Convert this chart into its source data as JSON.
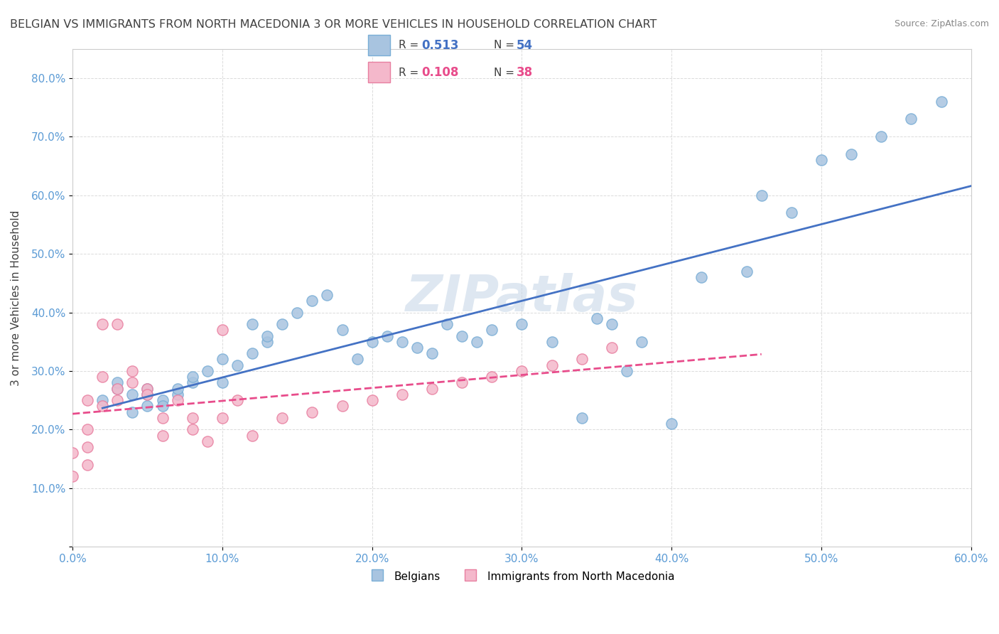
{
  "title": "BELGIAN VS IMMIGRANTS FROM NORTH MACEDONIA 3 OR MORE VEHICLES IN HOUSEHOLD CORRELATION CHART",
  "source": "Source: ZipAtlas.com",
  "ylabel": "3 or more Vehicles in Household",
  "xlabel": "",
  "xlim": [
    0.0,
    0.6
  ],
  "ylim": [
    0.0,
    0.85
  ],
  "xticks": [
    0.0,
    0.1,
    0.2,
    0.3,
    0.4,
    0.5,
    0.6
  ],
  "yticks": [
    0.0,
    0.1,
    0.2,
    0.3,
    0.4,
    0.5,
    0.6,
    0.7,
    0.8
  ],
  "ytick_labels": [
    "",
    "10.0%",
    "20.0%",
    "30.0%",
    "40.0%",
    "50.0%",
    "60.0%",
    "70.0%",
    "80.0%"
  ],
  "xtick_labels": [
    "0.0%",
    "10.0%",
    "20.0%",
    "30.0%",
    "40.0%",
    "50.0%",
    "60.0%"
  ],
  "legend_r1": "0.513",
  "legend_n1": "54",
  "legend_r2": "0.108",
  "legend_n2": "38",
  "belgian_color": "#a8c4e0",
  "belgian_edge": "#7aaed6",
  "macedonian_color": "#f4b8cb",
  "macedonian_edge": "#e87fa0",
  "trendline1_color": "#4472c4",
  "trendline2_color": "#e84c8b",
  "watermark_color": "#c8d8e8",
  "grid_color": "#cccccc",
  "title_color": "#404040",
  "axis_label_color": "#404040",
  "tick_color": "#5b9bd5",
  "belgians_x": [
    0.02,
    0.03,
    0.03,
    0.04,
    0.04,
    0.05,
    0.05,
    0.05,
    0.06,
    0.06,
    0.07,
    0.07,
    0.08,
    0.08,
    0.09,
    0.1,
    0.1,
    0.11,
    0.12,
    0.12,
    0.13,
    0.13,
    0.14,
    0.15,
    0.16,
    0.17,
    0.18,
    0.19,
    0.2,
    0.21,
    0.22,
    0.23,
    0.24,
    0.25,
    0.26,
    0.27,
    0.28,
    0.3,
    0.32,
    0.34,
    0.35,
    0.36,
    0.37,
    0.38,
    0.4,
    0.42,
    0.45,
    0.46,
    0.48,
    0.5,
    0.52,
    0.54,
    0.56,
    0.58
  ],
  "belgians_y": [
    0.25,
    0.27,
    0.28,
    0.23,
    0.26,
    0.24,
    0.26,
    0.27,
    0.25,
    0.24,
    0.26,
    0.27,
    0.28,
    0.29,
    0.3,
    0.28,
    0.32,
    0.31,
    0.33,
    0.38,
    0.35,
    0.36,
    0.38,
    0.4,
    0.42,
    0.43,
    0.37,
    0.32,
    0.35,
    0.36,
    0.35,
    0.34,
    0.33,
    0.38,
    0.36,
    0.35,
    0.37,
    0.38,
    0.35,
    0.22,
    0.39,
    0.38,
    0.3,
    0.35,
    0.21,
    0.46,
    0.47,
    0.6,
    0.57,
    0.66,
    0.67,
    0.7,
    0.73,
    0.76
  ],
  "macedonian_x": [
    0.0,
    0.0,
    0.01,
    0.01,
    0.01,
    0.01,
    0.02,
    0.02,
    0.02,
    0.03,
    0.03,
    0.03,
    0.04,
    0.04,
    0.05,
    0.05,
    0.06,
    0.06,
    0.07,
    0.08,
    0.08,
    0.09,
    0.1,
    0.1,
    0.11,
    0.12,
    0.14,
    0.16,
    0.18,
    0.2,
    0.22,
    0.24,
    0.26,
    0.28,
    0.3,
    0.32,
    0.34,
    0.36
  ],
  "macedonian_y": [
    0.16,
    0.12,
    0.14,
    0.17,
    0.2,
    0.25,
    0.24,
    0.29,
    0.38,
    0.38,
    0.27,
    0.25,
    0.3,
    0.28,
    0.27,
    0.26,
    0.22,
    0.19,
    0.25,
    0.22,
    0.2,
    0.18,
    0.37,
    0.22,
    0.25,
    0.19,
    0.22,
    0.23,
    0.24,
    0.25,
    0.26,
    0.27,
    0.28,
    0.29,
    0.3,
    0.31,
    0.32,
    0.34
  ]
}
